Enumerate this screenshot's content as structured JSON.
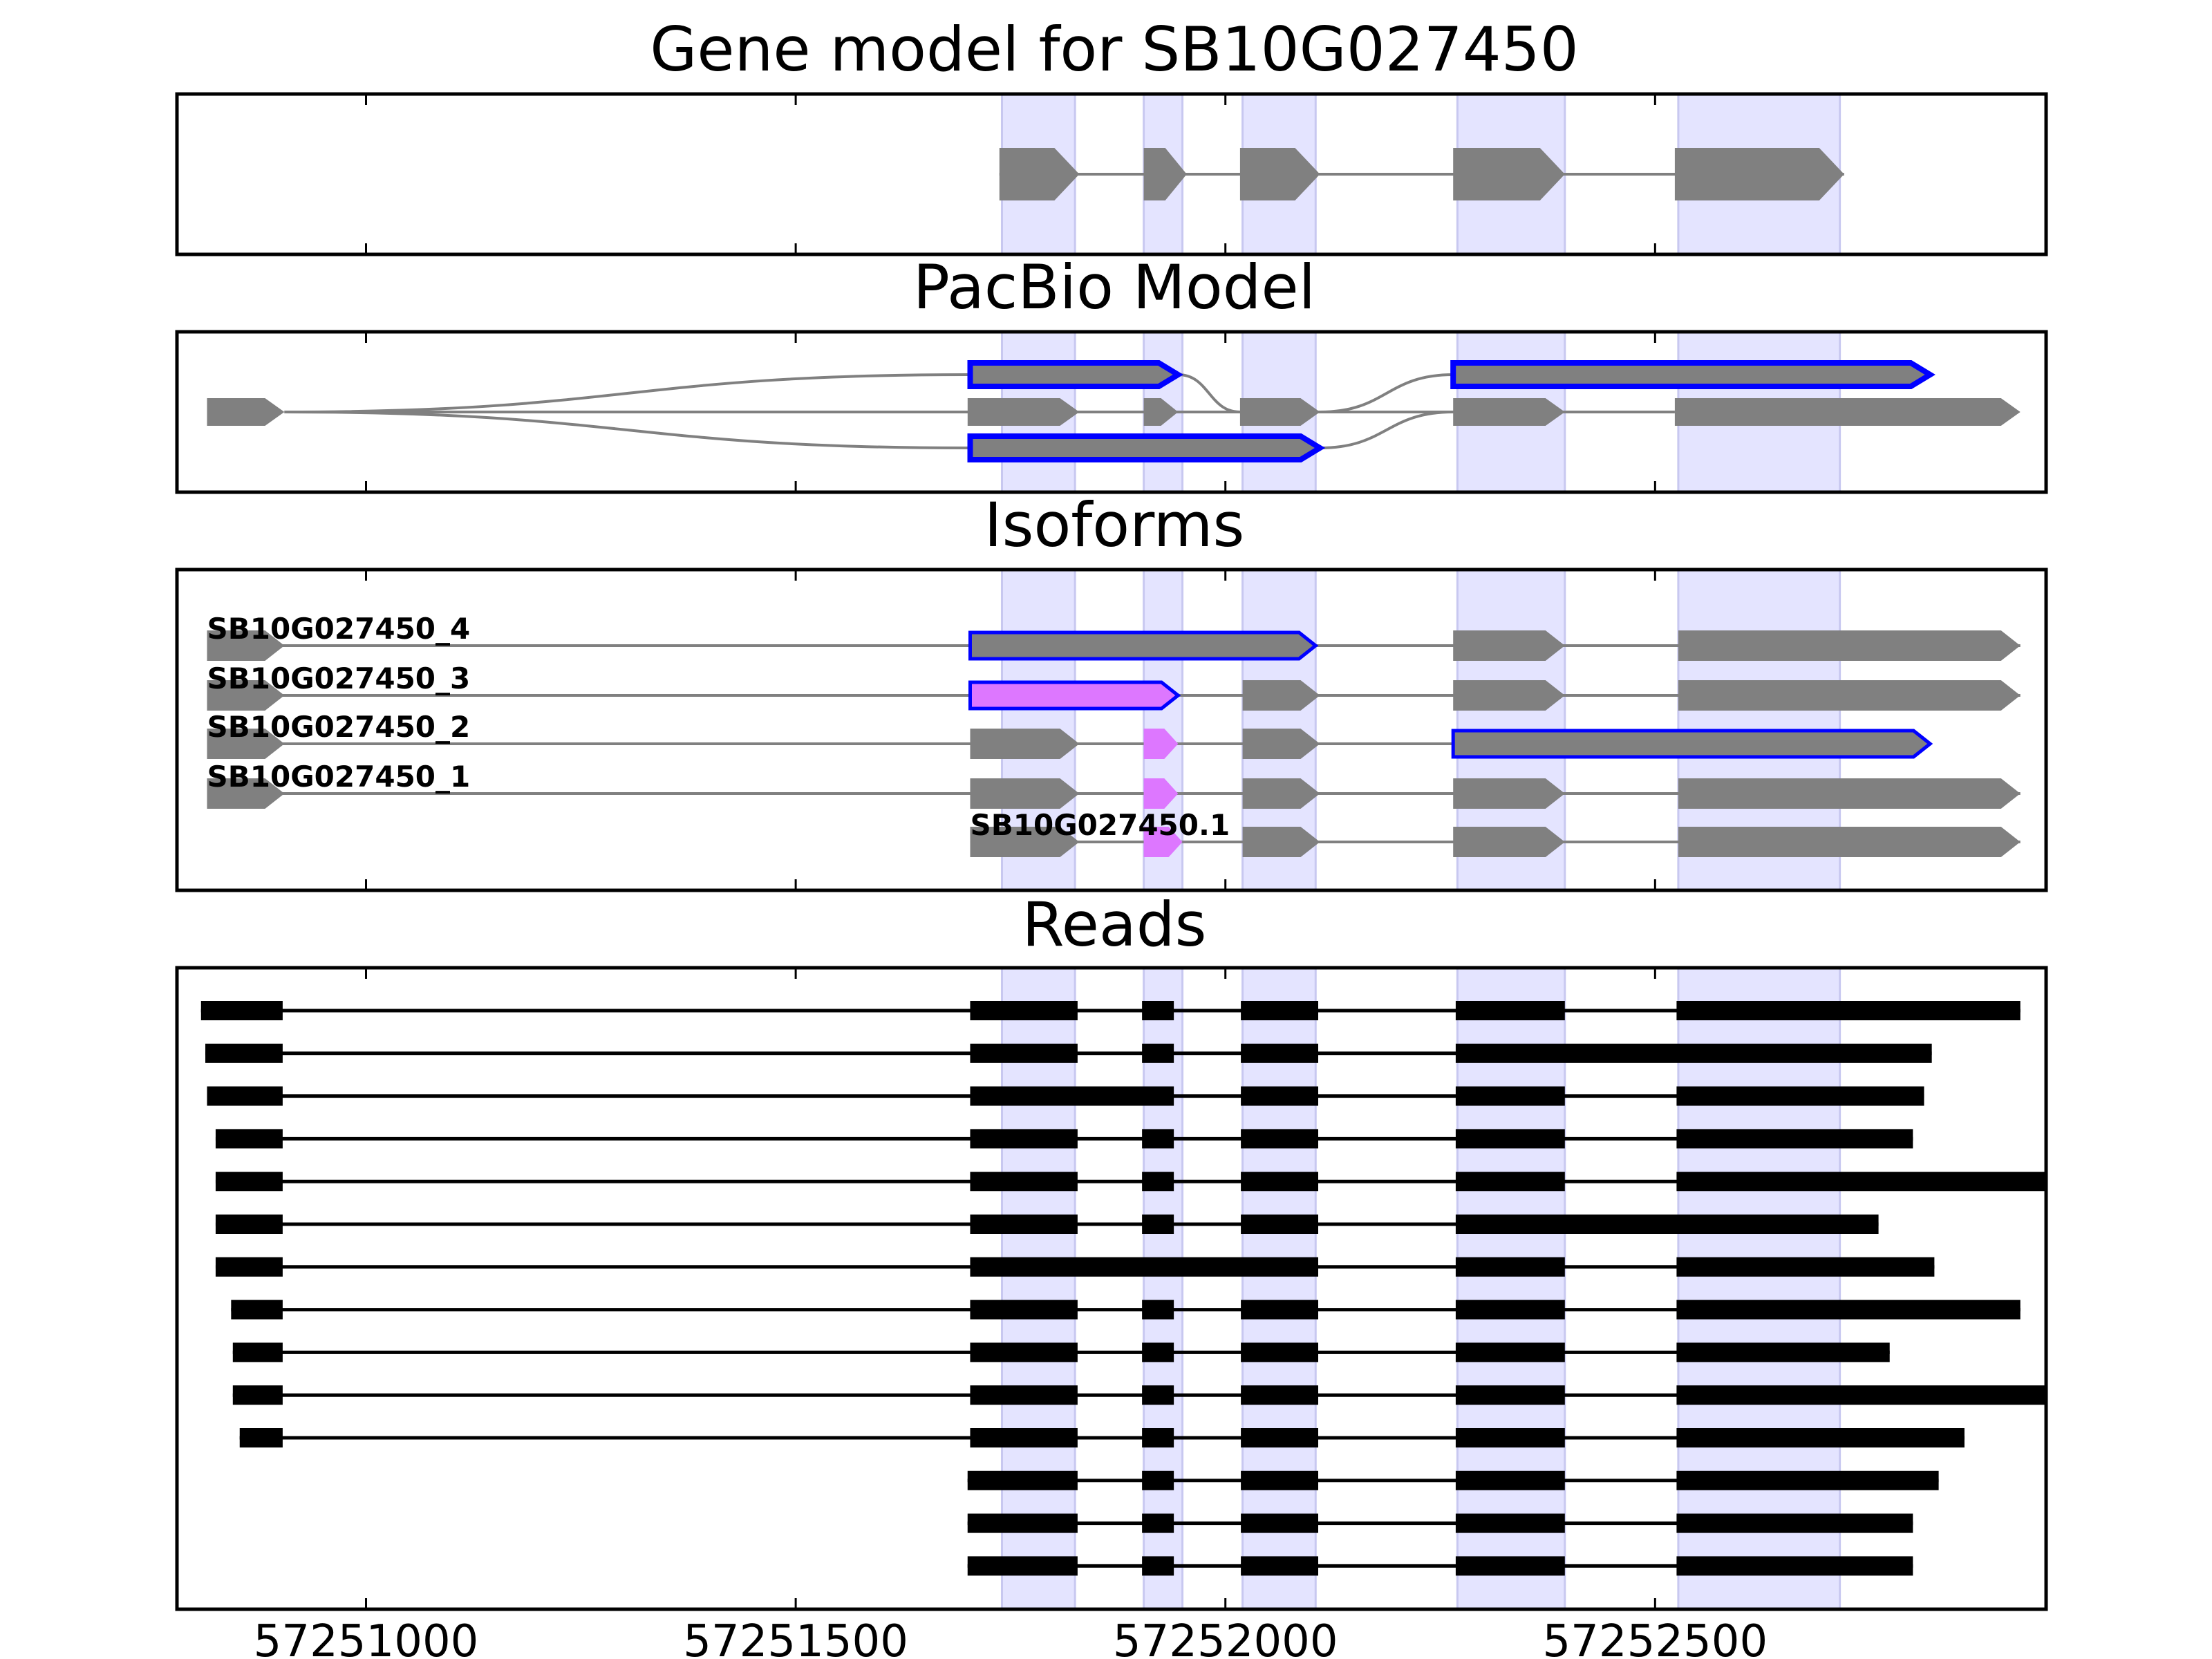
{
  "chart_data": {
    "type": "gene-structure",
    "x_range": [
      57250780,
      57252955
    ],
    "x_ticks": [
      57251000,
      57251500,
      57252000,
      57252500
    ],
    "x_tick_labels": [
      "57251000",
      "57251500",
      "57252000",
      "57252500"
    ],
    "colors": {
      "exon_highlight": "#e4e4ff",
      "exon_highlight_edge": "#c8c8f0",
      "exon_fill": "#808080",
      "intron_line": "#808080",
      "novel_outline": "#0000ff",
      "alt_exon": "#dd77ff",
      "read": "#000000",
      "frame": "#000000"
    },
    "highlight_exons": [
      [
        57251740,
        57251825
      ],
      [
        57251905,
        57251950
      ],
      [
        57252020,
        57252105
      ],
      [
        57252270,
        57252395
      ],
      [
        57252527,
        57252715
      ]
    ],
    "panels": {
      "gene_model": {
        "title": "Gene model for SB10G027450",
        "exons": [
          [
            57251737,
            57251830
          ],
          [
            57251905,
            57251955
          ],
          [
            57252017,
            57252110
          ],
          [
            57252265,
            57252395
          ],
          [
            57252523,
            57252720
          ]
        ]
      },
      "pacbio_model": {
        "title": "PacBio Model",
        "start_exon": [
          57250815,
          57250905
        ],
        "exons": [
          [
            57251700,
            57251830
          ],
          [
            57251905,
            57251945
          ],
          [
            57252017,
            57252110
          ],
          [
            57252265,
            57252395
          ],
          [
            57252523,
            57252925
          ]
        ],
        "novel_exons": [
          {
            "span": [
              57251703,
              57251945
            ],
            "row": "upper"
          },
          {
            "span": [
              57251703,
              57252110
            ],
            "row": "lower"
          },
          {
            "span": [
              57252265,
              57252820
            ],
            "row": "upper"
          }
        ]
      },
      "isoforms": {
        "title": "Isoforms",
        "rows": [
          {
            "name": "SB10G027450_4",
            "first_exon": [
              57250815,
              57250905
            ],
            "exons": [
              {
                "span": [
                  57251703,
                  57252105
                ],
                "style": "novel"
              },
              {
                "span": [
                  57252265,
                  57252395
                ],
                "style": "normal"
              },
              {
                "span": [
                  57252527,
                  57252925
                ],
                "style": "normal"
              }
            ]
          },
          {
            "name": "SB10G027450_3",
            "first_exon": [
              57250815,
              57250905
            ],
            "exons": [
              {
                "span": [
                  57251703,
                  57251945
                ],
                "style": "alt"
              },
              {
                "span": [
                  57252020,
                  57252110
                ],
                "style": "normal"
              },
              {
                "span": [
                  57252265,
                  57252395
                ],
                "style": "normal"
              },
              {
                "span": [
                  57252527,
                  57252925
                ],
                "style": "normal"
              }
            ]
          },
          {
            "name": "SB10G027450_2",
            "first_exon": [
              57250815,
              57250905
            ],
            "exons": [
              {
                "span": [
                  57251703,
                  57251830
                ],
                "style": "normal"
              },
              {
                "span": [
                  57251905,
                  57251945
                ],
                "style": "alt-small"
              },
              {
                "span": [
                  57252020,
                  57252110
                ],
                "style": "normal"
              },
              {
                "span": [
                  57252265,
                  57252820
                ],
                "style": "novel"
              }
            ]
          },
          {
            "name": "SB10G027450_1",
            "first_exon": [
              57250815,
              57250905
            ],
            "exons": [
              {
                "span": [
                  57251703,
                  57251830
                ],
                "style": "normal"
              },
              {
                "span": [
                  57251905,
                  57251945
                ],
                "style": "alt-small"
              },
              {
                "span": [
                  57252020,
                  57252110
                ],
                "style": "normal"
              },
              {
                "span": [
                  57252265,
                  57252395
                ],
                "style": "normal"
              },
              {
                "span": [
                  57252527,
                  57252925
                ],
                "style": "normal"
              }
            ]
          },
          {
            "name": "SB10G027450.1",
            "first_exon": null,
            "exons": [
              {
                "span": [
                  57251703,
                  57251830
                ],
                "style": "normal"
              },
              {
                "span": [
                  57251905,
                  57251950
                ],
                "style": "alt-small"
              },
              {
                "span": [
                  57252020,
                  57252110
                ],
                "style": "normal"
              },
              {
                "span": [
                  57252265,
                  57252395
                ],
                "style": "normal"
              },
              {
                "span": [
                  57252527,
                  57252925
                ],
                "style": "normal"
              }
            ]
          }
        ]
      },
      "reads": {
        "title": "Reads",
        "rows": [
          [
            [
              57250808,
              57250903
            ],
            [
              57251703,
              57251828
            ],
            [
              57251903,
              57251940
            ],
            [
              57252018,
              57252108
            ],
            [
              57252268,
              57252395
            ],
            [
              57252525,
              57252925
            ]
          ],
          [
            [
              57250813,
              57250903
            ],
            [
              57251703,
              57251828
            ],
            [
              57251903,
              57251940
            ],
            [
              57252018,
              57252108
            ],
            [
              57252268,
              57252822
            ]
          ],
          [
            [
              57250815,
              57250903
            ],
            [
              57251703,
              57251940
            ],
            [
              57252018,
              57252108
            ],
            [
              57252268,
              57252395
            ],
            [
              57252525,
              57252813
            ]
          ],
          [
            [
              57250825,
              57250903
            ],
            [
              57251703,
              57251828
            ],
            [
              57251903,
              57251940
            ],
            [
              57252018,
              57252108
            ],
            [
              57252268,
              57252395
            ],
            [
              57252525,
              57252800
            ]
          ],
          [
            [
              57250825,
              57250903
            ],
            [
              57251703,
              57251828
            ],
            [
              57251903,
              57251940
            ],
            [
              57252018,
              57252108
            ],
            [
              57252268,
              57252395
            ],
            [
              57252525,
              57252955
            ]
          ],
          [
            [
              57250825,
              57250903
            ],
            [
              57251703,
              57251828
            ],
            [
              57251903,
              57251940
            ],
            [
              57252018,
              57252108
            ],
            [
              57252268,
              57252760
            ]
          ],
          [
            [
              57250825,
              57250903
            ],
            [
              57251703,
              57252108
            ],
            [
              57252268,
              57252395
            ],
            [
              57252525,
              57252825
            ]
          ],
          [
            [
              57250843,
              57250903
            ],
            [
              57251703,
              57251828
            ],
            [
              57251903,
              57251940
            ],
            [
              57252018,
              57252108
            ],
            [
              57252268,
              57252395
            ],
            [
              57252525,
              57252925
            ]
          ],
          [
            [
              57250845,
              57250903
            ],
            [
              57251703,
              57251828
            ],
            [
              57251903,
              57251940
            ],
            [
              57252018,
              57252108
            ],
            [
              57252268,
              57252395
            ],
            [
              57252525,
              57252773
            ]
          ],
          [
            [
              57250845,
              57250903
            ],
            [
              57251703,
              57251828
            ],
            [
              57251903,
              57251940
            ],
            [
              57252018,
              57252108
            ],
            [
              57252268,
              57252395
            ],
            [
              57252525,
              57252955
            ]
          ],
          [
            [
              57250853,
              57250903
            ],
            [
              57251703,
              57251828
            ],
            [
              57251903,
              57251940
            ],
            [
              57252018,
              57252108
            ],
            [
              57252268,
              57252395
            ],
            [
              57252525,
              57252860
            ]
          ],
          [
            [
              57251700,
              57251828
            ],
            [
              57251903,
              57251940
            ],
            [
              57252018,
              57252108
            ],
            [
              57252268,
              57252395
            ],
            [
              57252525,
              57252830
            ]
          ],
          [
            [
              57251700,
              57251828
            ],
            [
              57251903,
              57251940
            ],
            [
              57252018,
              57252108
            ],
            [
              57252268,
              57252395
            ],
            [
              57252525,
              57252800
            ]
          ],
          [
            [
              57251700,
              57251828
            ],
            [
              57251903,
              57251940
            ],
            [
              57252018,
              57252108
            ],
            [
              57252268,
              57252395
            ],
            [
              57252525,
              57252800
            ]
          ]
        ]
      }
    }
  }
}
